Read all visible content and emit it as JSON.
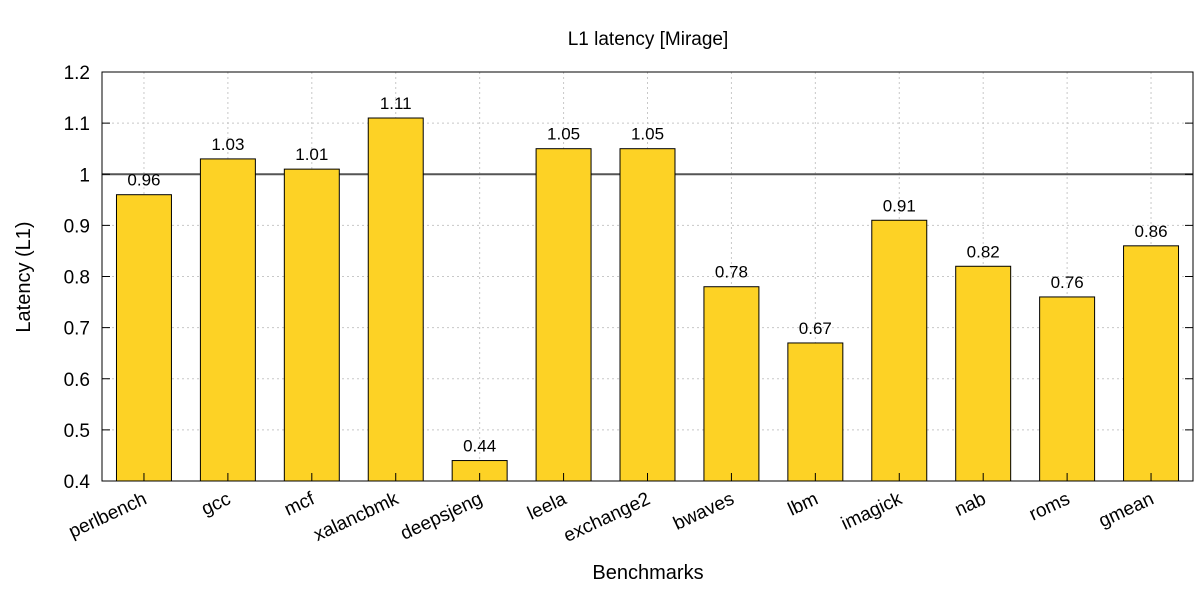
{
  "chart_data": {
    "type": "bar",
    "title": "L1 latency [Mirage]",
    "xlabel": "Benchmarks",
    "ylabel": "Latency (L1)",
    "ylim": [
      0.4,
      1.2
    ],
    "yticks": [
      "0.4",
      "0.5",
      "0.6",
      "0.7",
      "0.8",
      "0.9",
      "1",
      "1.1",
      "1.2"
    ],
    "reference_line": 1.0,
    "grid": true,
    "bar_color": "#fdd225",
    "categories": [
      "perlbench",
      "gcc",
      "mcf",
      "xalancbmk",
      "deepsjeng",
      "leela",
      "exchange2",
      "bwaves",
      "lbm",
      "imagick",
      "nab",
      "roms",
      "gmean"
    ],
    "values": [
      0.96,
      1.03,
      1.01,
      1.11,
      0.44,
      1.05,
      1.05,
      0.78,
      0.67,
      0.91,
      0.82,
      0.76,
      0.86
    ],
    "data_labels": [
      "0.96",
      "1.03",
      "1.01",
      "1.11",
      "0.44",
      "1.05",
      "1.05",
      "0.78",
      "0.67",
      "0.91",
      "0.82",
      "0.76",
      "0.86"
    ]
  }
}
